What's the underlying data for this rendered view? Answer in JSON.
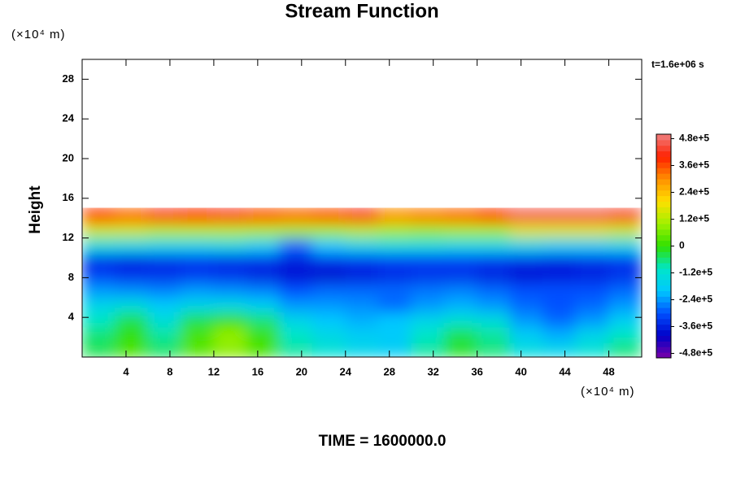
{
  "chart_data": {
    "type": "contour",
    "title": "Stream Function",
    "y_label": "Height",
    "x_unit": "(×10⁴ m)",
    "y_unit": "(×10⁴ m)",
    "annotation": "t=1.6e+06 s",
    "footer": "TIME = 1600000.0",
    "xlim": [
      0,
      51
    ],
    "ylim": [
      0,
      30
    ],
    "xticks": [
      4,
      8,
      12,
      16,
      20,
      24,
      28,
      32,
      36,
      40,
      44,
      48
    ],
    "yticks": [
      4,
      8,
      12,
      16,
      20,
      24,
      28
    ],
    "zlim": [
      -500000.0,
      500000.0
    ],
    "zticks": [
      {
        "value": 480000.0,
        "label": "4.8e+5"
      },
      {
        "value": 360000.0,
        "label": "3.6e+5"
      },
      {
        "value": 240000.0,
        "label": "2.4e+5"
      },
      {
        "value": 120000.0,
        "label": "1.2e+5"
      },
      0,
      {
        "value": -120000.0,
        "label": "-1.2e+5"
      },
      {
        "value": -240000.0,
        "label": "-2.4e+5"
      },
      {
        "value": -360000.0,
        "label": "-3.6e+5"
      },
      {
        "value": -480000.0,
        "label": "-4.8e+5"
      }
    ],
    "colors": [
      "#7a00a8",
      "#0000c8",
      "#0050ff",
      "#00c8ff",
      "#00e6c8",
      "#30e000",
      "#a0f000",
      "#ffe000",
      "#ff9000",
      "#ff2000",
      "#f08080"
    ],
    "x": [
      1.5,
      4.5,
      7.5,
      10.5,
      13.5,
      16.5,
      19.5,
      22.5,
      25.5,
      28.5,
      31.5,
      34.5,
      37.5,
      40.5,
      43.5,
      46.5,
      49.5
    ],
    "y": [
      0.75,
      2.25,
      3.75,
      5.25,
      6.75,
      8.25,
      9.75,
      11.25,
      12.75,
      14.25
    ],
    "z": [
      [
        -40000.0,
        20000.0,
        -50000.0,
        30000.0,
        80000.0,
        20000.0,
        -80000.0,
        -120000.0,
        -160000.0,
        -180000.0,
        -80000.0,
        -20000.0,
        -60000.0,
        -140000.0,
        -160000.0,
        -120000.0,
        -60000.0
      ],
      [
        -60000.0,
        0,
        -80000.0,
        20000.0,
        90000.0,
        10000.0,
        -100000.0,
        -150000.0,
        -180000.0,
        -190000.0,
        -100000.0,
        -40000.0,
        -80000.0,
        -180000.0,
        -220000.0,
        -160000.0,
        -100000.0
      ],
      [
        -100000.0,
        -40000.0,
        -130000.0,
        -40000.0,
        0,
        -60000.0,
        -160000.0,
        -200000.0,
        -220000.0,
        -200000.0,
        -160000.0,
        -120000.0,
        -140000.0,
        -240000.0,
        -280000.0,
        -240000.0,
        -180000.0
      ],
      [
        -160000.0,
        -140000.0,
        -190000.0,
        -160000.0,
        -150000.0,
        -180000.0,
        -240000.0,
        -240000.0,
        -250000.0,
        -280000.0,
        -240000.0,
        -220000.0,
        -240000.0,
        -280000.0,
        -300000.0,
        -280000.0,
        -240000.0
      ],
      [
        -240000.0,
        -250000.0,
        -260000.0,
        -240000.0,
        -250000.0,
        -260000.0,
        -300000.0,
        -280000.0,
        -280000.0,
        -280000.0,
        -270000.0,
        -260000.0,
        -280000.0,
        -300000.0,
        -300000.0,
        -300000.0,
        -280000.0
      ],
      [
        -320000.0,
        -340000.0,
        -340000.0,
        -330000.0,
        -340000.0,
        -360000.0,
        -380000.0,
        -390000.0,
        -370000.0,
        -350000.0,
        -340000.0,
        -340000.0,
        -360000.0,
        -380000.0,
        -370000.0,
        -360000.0,
        -340000.0
      ],
      [
        -340000.0,
        -350000.0,
        -340000.0,
        -330000.0,
        -340000.0,
        -340000.0,
        -360000.0,
        -340000.0,
        -330000.0,
        -320000.0,
        -320000.0,
        -320000.0,
        -330000.0,
        -340000.0,
        -350000.0,
        -340000.0,
        -330000.0
      ],
      [
        -140000.0,
        -150000.0,
        -160000.0,
        -160000.0,
        -150000.0,
        -180000.0,
        -280000.0,
        -200000.0,
        -160000.0,
        -140000.0,
        -140000.0,
        -150000.0,
        -150000.0,
        -160000.0,
        -180000.0,
        -180000.0,
        -160000.0
      ],
      [
        140000.0,
        140000.0,
        120000.0,
        120000.0,
        120000.0,
        110000.0,
        100000.0,
        100000.0,
        120000.0,
        100000.0,
        90000.0,
        100000.0,
        100000.0,
        160000.0,
        160000.0,
        160000.0,
        140000.0
      ],
      [
        380000.0,
        340000.0,
        420000.0,
        400000.0,
        420000.0,
        360000.0,
        340000.0,
        360000.0,
        420000.0,
        300000.0,
        320000.0,
        340000.0,
        380000.0,
        460000.0,
        460000.0,
        460000.0,
        440000.0
      ]
    ]
  }
}
